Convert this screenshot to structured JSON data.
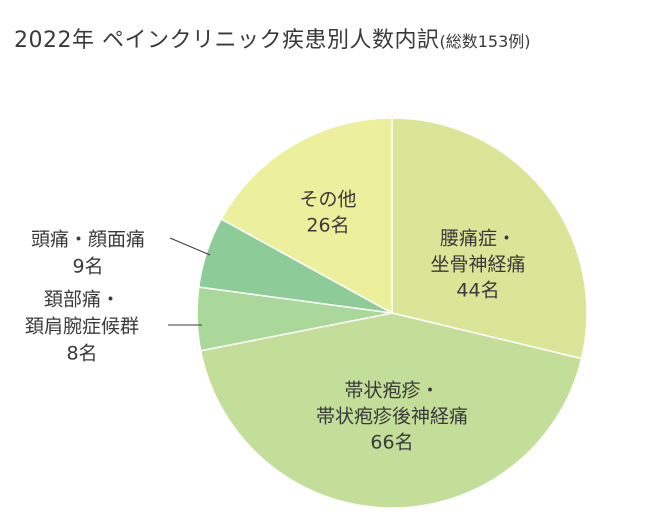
{
  "chart_data": {
    "type": "pie",
    "title": "2022年 ペインクリニック疾患別人数内訳",
    "subtitle": "(総数153例)",
    "slices": [
      {
        "label": "腰痛症・坐骨神経痛",
        "label_lines": [
          "腰痛症・",
          "坐骨神経痛"
        ],
        "value": 44,
        "value_label": "44名",
        "color": "#dbe598"
      },
      {
        "label": "帯状疱疹・帯状疱疹後神経痛",
        "label_lines": [
          "帯状疱疹・",
          "帯状疱疹後神経痛"
        ],
        "value": 66,
        "value_label": "66名",
        "color": "#c3de98"
      },
      {
        "label": "頚部痛・頚肩腕症候群",
        "label_lines": [
          "頚部痛・",
          "頚肩腕症候群"
        ],
        "value": 8,
        "value_label": "8名",
        "color": "#a9d89a"
      },
      {
        "label": "頭痛・顔面痛",
        "label_lines": [
          "頭痛・顔面痛"
        ],
        "value": 9,
        "value_label": "9名",
        "color": "#8dcb99"
      },
      {
        "label": "その他",
        "label_lines": [
          "その他"
        ],
        "value": 26,
        "value_label": "26名",
        "color": "#ecf09d"
      }
    ]
  }
}
